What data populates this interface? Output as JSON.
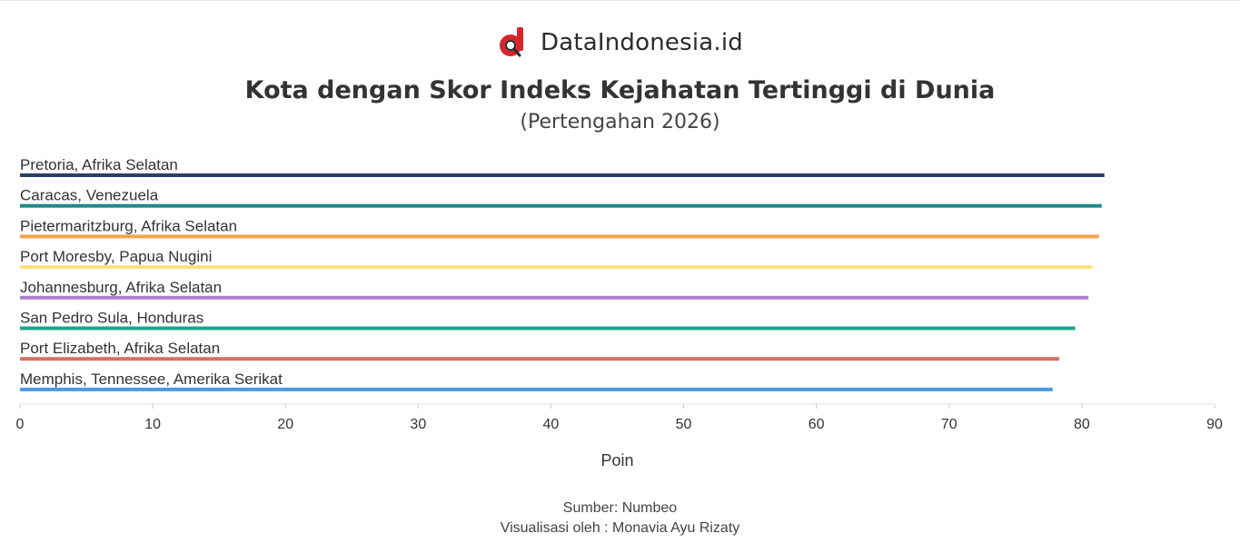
{
  "brand": {
    "name": "DataIndonesia.id",
    "logo_icon": "dataindonesia-logo-icon",
    "logo_color": "#d7262c"
  },
  "header": {
    "title": "Kota dengan Skor Indeks Kejahatan Tertinggi di Dunia",
    "subtitle": "(Pertengahan 2026)"
  },
  "footer": {
    "source": "Sumber: Numbeo",
    "credit": "Visualisasi oleh : Monavia Ayu Rizaty"
  },
  "chart_data": {
    "type": "bar",
    "orientation": "horizontal",
    "categories": [
      "Pretoria, Afrika Selatan",
      "Caracas, Venezuela",
      "Pietermaritzburg, Afrika Selatan",
      "Port Moresby, Papua Nugini",
      "Johannesburg, Afrika Selatan",
      "San Pedro Sula, Honduras",
      "Port Elizabeth, Afrika Selatan",
      "Memphis, Tennessee, Amerika Serikat"
    ],
    "values": [
      81.7,
      81.5,
      81.3,
      80.8,
      80.5,
      79.5,
      78.3,
      77.8
    ],
    "colors": [
      "#2c3e66",
      "#1f8a8a",
      "#f3a44d",
      "#fce37a",
      "#b07ed0",
      "#1fa38a",
      "#d9705f",
      "#4a9be0"
    ],
    "xlabel": "Poin",
    "ylabel": "",
    "xlim": [
      0,
      90
    ],
    "xticks": [
      0,
      10,
      20,
      30,
      40,
      50,
      60,
      70,
      80,
      90
    ],
    "grid": false
  }
}
